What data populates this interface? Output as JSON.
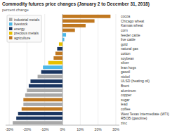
{
  "chart_data": {
    "type": "bar",
    "orientation": "horizontal",
    "title": "Commodity futures price changes (January 2 to December 31, 2018)",
    "subtitle": "percent change",
    "categories": [
      "cocoa",
      "Chicago wheat",
      "Kansas wheat",
      "corn",
      "feeder cattle",
      "live cattle",
      "gold",
      "natural gas",
      "cotton",
      "soybean",
      "silver",
      "lean hogs",
      "gasoil",
      "nickel",
      "ULSD (heating oil)",
      "Brent",
      "aluminum",
      "copper",
      "sugar",
      "lead",
      "coffee",
      "West Texas Intermediate (WTI)",
      "RBOB (gasoline)",
      "zinc"
    ],
    "values": [
      27,
      18,
      13,
      7,
      2,
      1,
      -2,
      -3,
      -4,
      -5,
      -8,
      -11,
      -12,
      -14,
      -18,
      -19,
      -20,
      -21,
      -22,
      -22,
      -23,
      -25,
      -26,
      -28
    ],
    "colors": [
      "#c07820",
      "#c07820",
      "#c07820",
      "#c07820",
      "#4db8e8",
      "#4db8e8",
      "#e8c000",
      "#1a3560",
      "#c07820",
      "#c07820",
      "#e8c000",
      "#4db8e8",
      "#1a3560",
      "#a8a8a8",
      "#1a3560",
      "#1a3560",
      "#a8a8a8",
      "#a8a8a8",
      "#c07820",
      "#a8a8a8",
      "#c07820",
      "#1a3560",
      "#1a3560",
      "#a8a8a8"
    ],
    "legend": "upper left",
    "legend_items": [
      {
        "name": "industrial metals",
        "color": "#a8a8a8"
      },
      {
        "name": "livestock",
        "color": "#4db8e8"
      },
      {
        "name": "energy",
        "color": "#1a3560"
      },
      {
        "name": "precious metals",
        "color": "#e8c000"
      },
      {
        "name": "agriculture",
        "color": "#c07820"
      }
    ],
    "xlim": [
      -32,
      32
    ],
    "xticks": [
      {
        "value": -30,
        "label": "-30%"
      },
      {
        "value": -20,
        "label": "-20%"
      },
      {
        "value": -10,
        "label": "-10%"
      },
      {
        "value": 0,
        "label": "0%"
      },
      {
        "value": 10,
        "label": "10%"
      },
      {
        "value": 20,
        "label": "20%"
      },
      {
        "value": 30,
        "label": "30%"
      }
    ],
    "grid": true
  }
}
